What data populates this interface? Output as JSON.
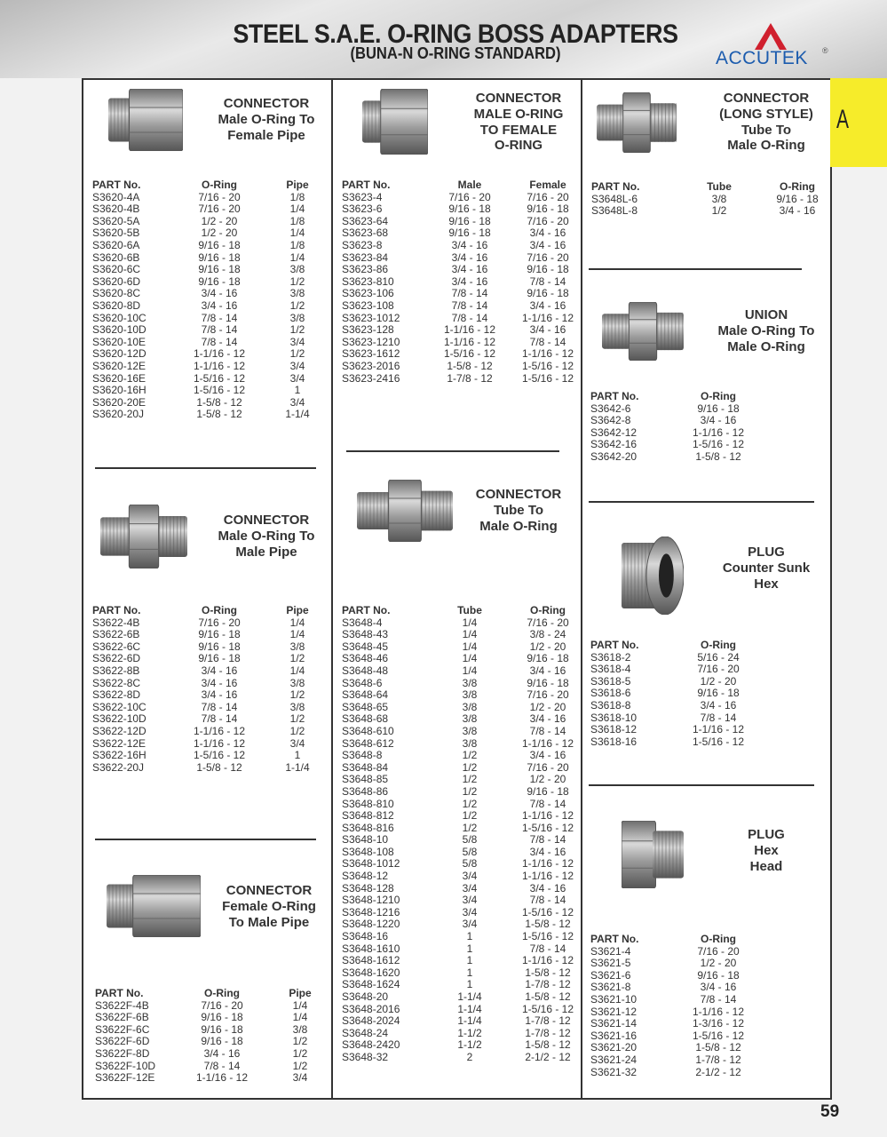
{
  "header": {
    "title": "STEEL S.A.E. O-RING BOSS ADAPTERS",
    "subtitle": "(BUNA-N O-RING STANDARD)",
    "logo_text": "ACCUTEK",
    "logo_reg": "®",
    "logo_colors": {
      "mark": "#d0202e",
      "text": "#1c5cae"
    }
  },
  "tab": {
    "label": "A",
    "color": "#f6ec2a"
  },
  "page_number": "59",
  "sections": [
    {
      "id": "s1",
      "title": [
        "CONNECTOR",
        "Male O-Ring To",
        "Female Pipe"
      ],
      "headers": [
        "PART No.",
        "O-Ring",
        "Pipe"
      ],
      "rows": [
        [
          "S3620-4A",
          "7/16 - 20",
          "1/8"
        ],
        [
          "S3620-4B",
          "7/16 - 20",
          "1/4"
        ],
        [
          "S3620-5A",
          "1/2 - 20",
          "1/8"
        ],
        [
          "S3620-5B",
          "1/2 - 20",
          "1/4"
        ],
        [
          "S3620-6A",
          "9/16 - 18",
          "1/8"
        ],
        [
          "S3620-6B",
          "9/16 - 18",
          "1/4"
        ],
        [
          "S3620-6C",
          "9/16 - 18",
          "3/8"
        ],
        [
          "S3620-6D",
          "9/16 - 18",
          "1/2"
        ],
        [
          "S3620-8C",
          "3/4 - 16",
          "3/8"
        ],
        [
          "S3620-8D",
          "3/4 - 16",
          "1/2"
        ],
        [
          "S3620-10C",
          "7/8 - 14",
          "3/8"
        ],
        [
          "S3620-10D",
          "7/8 - 14",
          "1/2"
        ],
        [
          "S3620-10E",
          "7/8 - 14",
          "3/4"
        ],
        [
          "S3620-12D",
          "1-1/16 - 12",
          "1/2"
        ],
        [
          "S3620-12E",
          "1-1/16 - 12",
          "3/4"
        ],
        [
          "S3620-16E",
          "1-5/16 - 12",
          "3/4"
        ],
        [
          "S3620-16H",
          "1-5/16 - 12",
          "1"
        ],
        [
          "S3620-20E",
          "1-5/8 - 12",
          "3/4"
        ],
        [
          "S3620-20J",
          "1-5/8 - 12",
          "1-1/4"
        ]
      ]
    },
    {
      "id": "s2",
      "title": [
        "CONNECTOR",
        "Male O-Ring To",
        "Male Pipe"
      ],
      "headers": [
        "PART No.",
        "O-Ring",
        "Pipe"
      ],
      "rows": [
        [
          "S3622-4B",
          "7/16 - 20",
          "1/4"
        ],
        [
          "S3622-6B",
          "9/16 - 18",
          "1/4"
        ],
        [
          "S3622-6C",
          "9/16 - 18",
          "3/8"
        ],
        [
          "S3622-6D",
          "9/16 - 18",
          "1/2"
        ],
        [
          "S3622-8B",
          "3/4 - 16",
          "1/4"
        ],
        [
          "S3622-8C",
          "3/4 - 16",
          "3/8"
        ],
        [
          "S3622-8D",
          "3/4 - 16",
          "1/2"
        ],
        [
          "S3622-10C",
          "7/8 - 14",
          "3/8"
        ],
        [
          "S3622-10D",
          "7/8 - 14",
          "1/2"
        ],
        [
          "S3622-12D",
          "1-1/16 - 12",
          "1/2"
        ],
        [
          "S3622-12E",
          "1-1/16 - 12",
          "3/4"
        ],
        [
          "S3622-16H",
          "1-5/16 - 12",
          "1"
        ],
        [
          "S3622-20J",
          "1-5/8 - 12",
          "1-1/4"
        ]
      ]
    },
    {
      "id": "s3",
      "title": [
        "CONNECTOR",
        "Female O-Ring",
        "To Male Pipe"
      ],
      "headers": [
        "PART No.",
        "O-Ring",
        "Pipe"
      ],
      "rows": [
        [
          "S3622F-4B",
          "7/16 - 20",
          "1/4"
        ],
        [
          "S3622F-6B",
          "9/16 - 18",
          "1/4"
        ],
        [
          "S3622F-6C",
          "9/16 - 18",
          "3/8"
        ],
        [
          "S3622F-6D",
          "9/16 - 18",
          "1/2"
        ],
        [
          "S3622F-8D",
          "3/4 - 16",
          "1/2"
        ],
        [
          "S3622F-10D",
          "7/8 - 14",
          "1/2"
        ],
        [
          "S3622F-12E",
          "1-1/16 - 12",
          "3/4"
        ]
      ]
    },
    {
      "id": "s4",
      "title": [
        "CONNECTOR",
        "MALE O-RING",
        "TO FEMALE",
        "O-RING"
      ],
      "headers": [
        "PART No.",
        "Male",
        "Female"
      ],
      "rows": [
        [
          "S3623-4",
          "7/16 - 20",
          "7/16 - 20"
        ],
        [
          "S3623-6",
          "9/16 - 18",
          "9/16 - 18"
        ],
        [
          "S3623-64",
          "9/16 - 18",
          "7/16 - 20"
        ],
        [
          "S3623-68",
          "9/16 - 18",
          "3/4 - 16"
        ],
        [
          "S3623-8",
          "3/4 - 16",
          "3/4 - 16"
        ],
        [
          "S3623-84",
          "3/4 - 16",
          "7/16 - 20"
        ],
        [
          "S3623-86",
          "3/4 - 16",
          "9/16 - 18"
        ],
        [
          "S3623-810",
          "3/4 - 16",
          "7/8 - 14"
        ],
        [
          "S3623-106",
          "7/8 - 14",
          "9/16 - 18"
        ],
        [
          "S3623-108",
          "7/8 - 14",
          "3/4 - 16"
        ],
        [
          "S3623-1012",
          "7/8 - 14",
          "1-1/16 - 12"
        ],
        [
          "S3623-128",
          "1-1/16 - 12",
          "3/4 - 16"
        ],
        [
          "S3623-1210",
          "1-1/16 - 12",
          "7/8 - 14"
        ],
        [
          "S3623-1612",
          "1-5/16 - 12",
          "1-1/16 - 12"
        ],
        [
          "S3623-2016",
          "1-5/8 - 12",
          "1-5/16 - 12"
        ],
        [
          "S3623-2416",
          "1-7/8 - 12",
          "1-5/16 - 12"
        ]
      ]
    },
    {
      "id": "s5",
      "title": [
        "CONNECTOR",
        "Tube To",
        "Male O-Ring"
      ],
      "headers": [
        "PART No.",
        "Tube",
        "O-Ring"
      ],
      "rows": [
        [
          "S3648-4",
          "1/4",
          "7/16 - 20"
        ],
        [
          "S3648-43",
          "1/4",
          "3/8 - 24"
        ],
        [
          "S3648-45",
          "1/4",
          "1/2 - 20"
        ],
        [
          "S3648-46",
          "1/4",
          "9/16 - 18"
        ],
        [
          "S3648-48",
          "1/4",
          "3/4 - 16"
        ],
        [
          "S3648-6",
          "3/8",
          "9/16 - 18"
        ],
        [
          "S3648-64",
          "3/8",
          "7/16 - 20"
        ],
        [
          "S3648-65",
          "3/8",
          "1/2 - 20"
        ],
        [
          "S3648-68",
          "3/8",
          "3/4 - 16"
        ],
        [
          "S3648-610",
          "3/8",
          "7/8 - 14"
        ],
        [
          "S3648-612",
          "3/8",
          "1-1/16 - 12"
        ],
        [
          "S3648-8",
          "1/2",
          "3/4 - 16"
        ],
        [
          "S3648-84",
          "1/2",
          "7/16 - 20"
        ],
        [
          "S3648-85",
          "1/2",
          "1/2 - 20"
        ],
        [
          "S3648-86",
          "1/2",
          "9/16 - 18"
        ],
        [
          "S3648-810",
          "1/2",
          "7/8 - 14"
        ],
        [
          "S3648-812",
          "1/2",
          "1-1/16 - 12"
        ],
        [
          "S3648-816",
          "1/2",
          "1-5/16 - 12"
        ],
        [
          "S3648-10",
          "5/8",
          "7/8 - 14"
        ],
        [
          "S3648-108",
          "5/8",
          "3/4 - 16"
        ],
        [
          "S3648-1012",
          "5/8",
          "1-1/16 - 12"
        ],
        [
          "S3648-12",
          "3/4",
          "1-1/16 - 12"
        ],
        [
          "S3648-128",
          "3/4",
          "3/4 - 16"
        ],
        [
          "S3648-1210",
          "3/4",
          "7/8 - 14"
        ],
        [
          "S3648-1216",
          "3/4",
          "1-5/16 - 12"
        ],
        [
          "S3648-1220",
          "3/4",
          "1-5/8 - 12"
        ],
        [
          "S3648-16",
          "1",
          "1-5/16 - 12"
        ],
        [
          "S3648-1610",
          "1",
          "7/8 - 14"
        ],
        [
          "S3648-1612",
          "1",
          "1-1/16 - 12"
        ],
        [
          "S3648-1620",
          "1",
          "1-5/8 - 12"
        ],
        [
          "S3648-1624",
          "1",
          "1-7/8 - 12"
        ],
        [
          "S3648-20",
          "1-1/4",
          "1-5/8 - 12"
        ],
        [
          "S3648-2016",
          "1-1/4",
          "1-5/16 - 12"
        ],
        [
          "S3648-2024",
          "1-1/4",
          "1-7/8 - 12"
        ],
        [
          "S3648-24",
          "1-1/2",
          "1-7/8 - 12"
        ],
        [
          "S3648-2420",
          "1-1/2",
          "1-5/8 - 12"
        ],
        [
          "S3648-32",
          "2",
          "2-1/2 - 12"
        ]
      ]
    },
    {
      "id": "s6",
      "title": [
        "CONNECTOR",
        "(LONG STYLE)",
        "Tube To",
        "Male O-Ring"
      ],
      "headers": [
        "PART No.",
        "Tube",
        "O-Ring"
      ],
      "rows": [
        [
          "S3648L-6",
          "3/8",
          "9/16 - 18"
        ],
        [
          "S3648L-8",
          "1/2",
          "3/4 - 16"
        ]
      ]
    },
    {
      "id": "s7",
      "title": [
        "UNION",
        "Male O-Ring To",
        "Male O-Ring"
      ],
      "headers": [
        "PART No.",
        "O-Ring"
      ],
      "rows": [
        [
          "S3642-6",
          "9/16 - 18"
        ],
        [
          "S3642-8",
          "3/4 - 16"
        ],
        [
          "S3642-12",
          "1-1/16 - 12"
        ],
        [
          "S3642-16",
          "1-5/16 - 12"
        ],
        [
          "S3642-20",
          "1-5/8 - 12"
        ]
      ]
    },
    {
      "id": "s8",
      "title": [
        "PLUG",
        "Counter Sunk",
        "Hex"
      ],
      "headers": [
        "PART No.",
        "O-Ring"
      ],
      "rows": [
        [
          "S3618-2",
          "5/16 - 24"
        ],
        [
          "S3618-4",
          "7/16 - 20"
        ],
        [
          "S3618-5",
          "1/2 - 20"
        ],
        [
          "S3618-6",
          "9/16 - 18"
        ],
        [
          "S3618-8",
          "3/4 - 16"
        ],
        [
          "S3618-10",
          "7/8 - 14"
        ],
        [
          "S3618-12",
          "1-1/16 - 12"
        ],
        [
          "S3618-16",
          "1-5/16 - 12"
        ]
      ]
    },
    {
      "id": "s9",
      "title": [
        "PLUG",
        "Hex",
        "Head"
      ],
      "headers": [
        "PART No.",
        "O-Ring"
      ],
      "rows": [
        [
          "S3621-4",
          "7/16 - 20"
        ],
        [
          "S3621-5",
          "1/2 - 20"
        ],
        [
          "S3621-6",
          "9/16 - 18"
        ],
        [
          "S3621-8",
          "3/4 - 16"
        ],
        [
          "S3621-10",
          "7/8 - 14"
        ],
        [
          "S3621-12",
          "1-1/16 - 12"
        ],
        [
          "S3621-14",
          "1-3/16 - 12"
        ],
        [
          "S3621-16",
          "1-5/16 - 12"
        ],
        [
          "S3621-20",
          "1-5/8 - 12"
        ],
        [
          "S3621-24",
          "1-7/8 - 12"
        ],
        [
          "S3621-32",
          "2-1/2 - 12"
        ]
      ]
    }
  ]
}
